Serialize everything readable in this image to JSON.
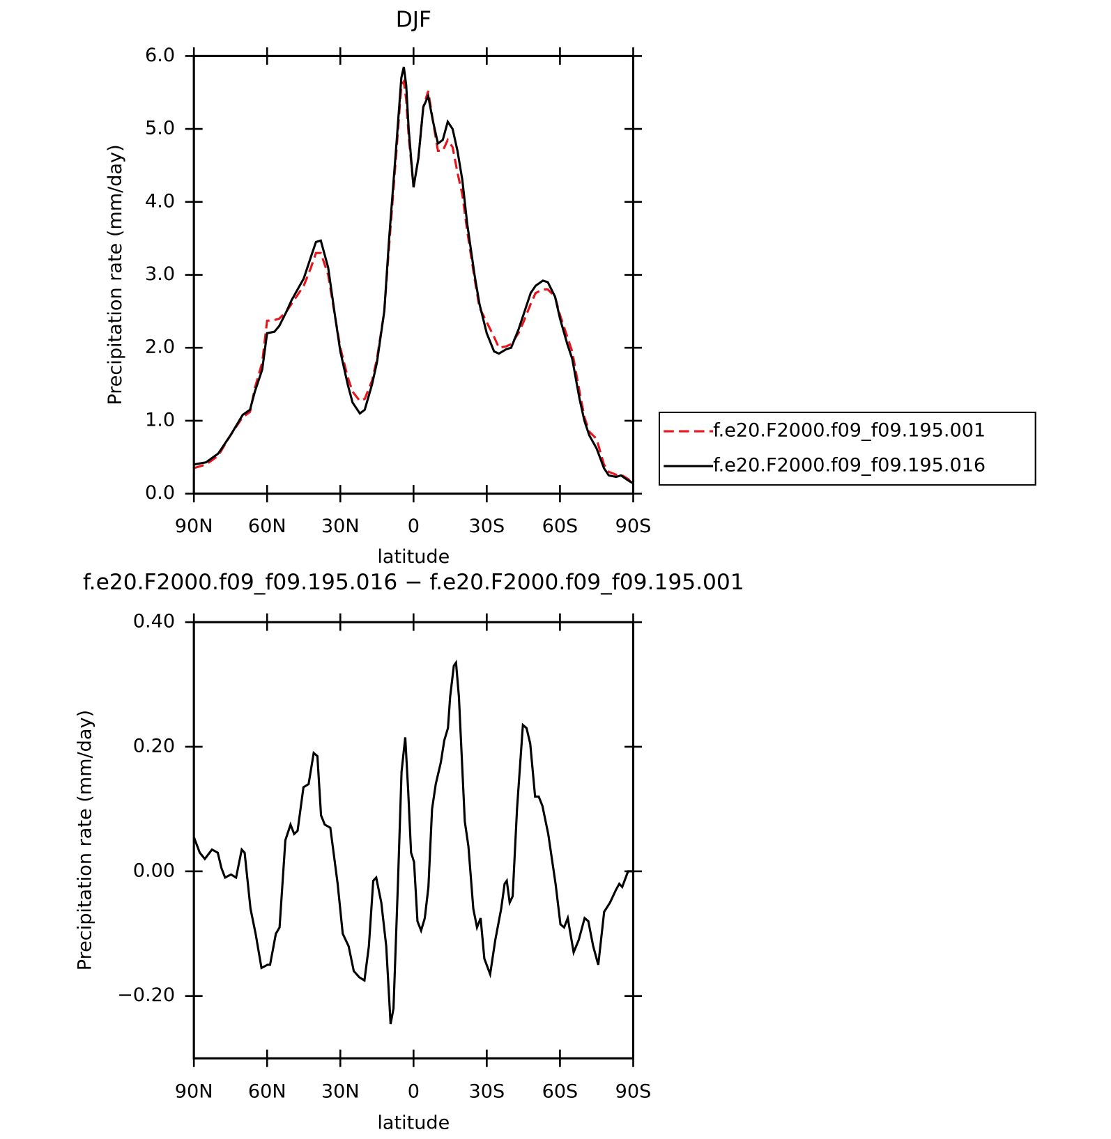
{
  "chart_data": [
    {
      "type": "line",
      "title": "DJF",
      "x_label": "latitude",
      "y_label": "Precipitation rate (mm/day)",
      "xlim": [
        90,
        -90
      ],
      "ylim": [
        0,
        6
      ],
      "xticks": [
        {
          "value": 90,
          "label": "90N"
        },
        {
          "value": 60,
          "label": "60N"
        },
        {
          "value": 30,
          "label": "30N"
        },
        0,
        {
          "value": -30,
          "label": "30S"
        },
        {
          "value": -60,
          "label": "60S"
        },
        {
          "value": -90,
          "label": "90S"
        }
      ],
      "yticks": [
        {
          "value": 0,
          "label": "0.0"
        },
        {
          "value": 1,
          "label": "1.0"
        },
        {
          "value": 2,
          "label": "2.0"
        },
        {
          "value": 3,
          "label": "3.0"
        },
        {
          "value": 4,
          "label": "4.0"
        },
        {
          "value": 5,
          "label": "5.0"
        },
        {
          "value": 6,
          "label": "6.0"
        }
      ],
      "legend": "right",
      "x": [
        90,
        85,
        80,
        75,
        70,
        67,
        65,
        62,
        60,
        57,
        55,
        52,
        50,
        45,
        42,
        40,
        38,
        35,
        32,
        30,
        27,
        25,
        22,
        20,
        17,
        15,
        12,
        10,
        7,
        5,
        4,
        3,
        2,
        0,
        -2,
        -4,
        -6,
        -8,
        -10,
        -12,
        -14,
        -16,
        -18,
        -20,
        -22,
        -25,
        -27,
        -30,
        -33,
        -35,
        -38,
        -40,
        -43,
        -45,
        -48,
        -50,
        -53,
        -55,
        -58,
        -60,
        -63,
        -65,
        -68,
        -70,
        -72,
        -75,
        -78,
        -80,
        -83,
        -85,
        -88,
        -90
      ],
      "series": [
        {
          "name": "f.e20.F2000.f09_f09.195.001",
          "color": "#e8141c",
          "line_style": "dashed",
          "values": [
            0.35,
            0.4,
            0.52,
            0.8,
            1.05,
            1.12,
            1.45,
            1.8,
            2.37,
            2.38,
            2.4,
            2.5,
            2.6,
            2.85,
            3.1,
            3.3,
            3.3,
            3.0,
            2.4,
            2.0,
            1.6,
            1.4,
            1.27,
            1.3,
            1.55,
            1.85,
            2.5,
            3.4,
            4.7,
            5.6,
            5.65,
            5.4,
            4.9,
            4.2,
            4.6,
            5.3,
            5.52,
            5.1,
            4.7,
            4.7,
            4.85,
            4.75,
            4.4,
            4.1,
            3.6,
            2.95,
            2.55,
            2.35,
            2.15,
            2.0,
            2.02,
            2.05,
            2.2,
            2.35,
            2.6,
            2.75,
            2.8,
            2.8,
            2.7,
            2.45,
            2.15,
            1.95,
            1.4,
            1.05,
            0.85,
            0.75,
            0.4,
            0.3,
            0.26,
            0.26,
            0.2,
            0.12
          ]
        },
        {
          "name": "f.e20.F2000.f09_f09.195.016",
          "color": "#000000",
          "line_style": "solid",
          "values": [
            0.4,
            0.43,
            0.55,
            0.8,
            1.08,
            1.15,
            1.4,
            1.7,
            2.2,
            2.22,
            2.3,
            2.5,
            2.65,
            2.95,
            3.25,
            3.45,
            3.47,
            3.1,
            2.4,
            1.95,
            1.5,
            1.25,
            1.1,
            1.15,
            1.5,
            1.8,
            2.5,
            3.5,
            4.8,
            5.7,
            5.85,
            5.6,
            5.0,
            4.2,
            4.6,
            5.3,
            5.45,
            5.1,
            4.8,
            4.85,
            5.1,
            5.0,
            4.7,
            4.3,
            3.7,
            3.0,
            2.6,
            2.2,
            1.95,
            1.92,
            1.98,
            2.0,
            2.25,
            2.45,
            2.75,
            2.85,
            2.92,
            2.9,
            2.7,
            2.4,
            2.05,
            1.85,
            1.3,
            1.0,
            0.8,
            0.62,
            0.35,
            0.25,
            0.23,
            0.25,
            0.18,
            0.14
          ]
        }
      ]
    },
    {
      "type": "line",
      "title": "f.e20.F2000.f09_f09.195.016 − f.e20.F2000.f09_f09.195.001",
      "x_label": "latitude",
      "y_label": "Precipitation rate (mm/day)",
      "xlim": [
        90,
        -90
      ],
      "ylim": [
        -0.3,
        0.4
      ],
      "xticks": [
        {
          "value": 90,
          "label": "90N"
        },
        {
          "value": 60,
          "label": "60N"
        },
        {
          "value": 30,
          "label": "30N"
        },
        0,
        {
          "value": -30,
          "label": "30S"
        },
        {
          "value": -60,
          "label": "60S"
        },
        {
          "value": -90,
          "label": "90S"
        }
      ],
      "yticks": [
        {
          "value": -0.2,
          "label": "−0.20"
        },
        {
          "value": 0,
          "label": "0.00"
        },
        {
          "value": 0.2,
          "label": "0.20"
        },
        {
          "value": 0.4,
          "label": "0.40"
        }
      ],
      "x": [
        90,
        87.6,
        85.5,
        82.6,
        80.2,
        78.7,
        77.2,
        74.8,
        72.7,
        70.4,
        69.2,
        66.8,
        64.7,
        62.3,
        59.9,
        58.8,
        56.4,
        54.9,
        52.5,
        50.4,
        48.9,
        47.5,
        45.1,
        43.0,
        40.9,
        39.4,
        37.9,
        36.4,
        34.1,
        31.1,
        29.0,
        26.6,
        24.5,
        22.2,
        20.1,
        18.3,
        16.5,
        15.3,
        13.2,
        11.2,
        9.4,
        8.2,
        6.4,
        4.9,
        3.4,
        2.2,
        1.0,
        -0.2,
        -1.6,
        -3.1,
        -4.6,
        -6.1,
        -7.6,
        -9.1,
        -11.2,
        -12.6,
        -14.1,
        -15.0,
        -16.5,
        -17.4,
        -18.6,
        -21.0,
        -22.5,
        -24.5,
        -26.0,
        -27.5,
        -29.0,
        -31.4,
        -33.5,
        -35.9,
        -37.3,
        -38.2,
        -39.4,
        -40.6,
        -42.4,
        -44.8,
        -46.3,
        -47.8,
        -49.8,
        -51.3,
        -52.8,
        -55.2,
        -58.2,
        -60.2,
        -61.7,
        -63.2,
        -65.6,
        -67.7,
        -70.1,
        -71.6,
        -73.6,
        -75.7,
        -78.1,
        -80.5,
        -82.9,
        -84.3,
        -85.5,
        -87.9,
        -90
      ],
      "series": [
        {
          "color": "#000000",
          "line_style": "solid",
          "values": [
            0.055,
            0.03,
            0.02,
            0.035,
            0.03,
            0.005,
            -0.01,
            -0.005,
            -0.01,
            0.035,
            0.03,
            -0.06,
            -0.1,
            -0.155,
            -0.15,
            -0.15,
            -0.1,
            -0.09,
            0.05,
            0.075,
            0.06,
            0.065,
            0.135,
            0.14,
            0.19,
            0.185,
            0.09,
            0.075,
            0.07,
            -0.02,
            -0.1,
            -0.12,
            -0.16,
            -0.17,
            -0.175,
            -0.12,
            -0.015,
            -0.01,
            -0.05,
            -0.12,
            -0.245,
            -0.22,
            -0.02,
            0.16,
            0.215,
            0.13,
            0.03,
            0.015,
            -0.08,
            -0.095,
            -0.075,
            -0.025,
            0.1,
            0.14,
            0.175,
            0.21,
            0.23,
            0.28,
            0.33,
            0.335,
            0.28,
            0.08,
            0.04,
            -0.06,
            -0.09,
            -0.075,
            -0.14,
            -0.165,
            -0.11,
            -0.06,
            -0.02,
            -0.015,
            -0.05,
            -0.04,
            0.1,
            0.235,
            0.23,
            0.205,
            0.12,
            0.12,
            0.105,
            0.06,
            -0.02,
            -0.085,
            -0.09,
            -0.075,
            -0.13,
            -0.11,
            -0.075,
            -0.08,
            -0.12,
            -0.15,
            -0.065,
            -0.05,
            -0.03,
            -0.02,
            -0.025,
            0.0,
            0.0
          ]
        }
      ]
    }
  ]
}
